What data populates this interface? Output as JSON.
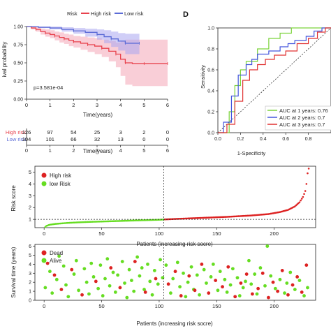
{
  "chart_data": [
    {
      "type": "line",
      "legend": {
        "title": "Risk",
        "entries": [
          "High risk",
          "Low risk"
        ],
        "colors": [
          "#e8424d",
          "#5b6bd6"
        ],
        "placement": "top"
      },
      "ylabel": "Survival probability",
      "ylabel_shown": "ival probability",
      "xlabel": "Time(years)",
      "xlim": [
        0,
        6
      ],
      "ylim": [
        0,
        1
      ],
      "x_ticks": [
        0,
        1,
        2,
        3,
        4,
        5,
        6
      ],
      "y_ticks": [
        "0.00",
        "0.25",
        "0.50",
        "0.75",
        "1.00"
      ],
      "annotation": "p=3.581e-04",
      "series": [
        {
          "name": "High risk",
          "color": "#e8424d",
          "ci_color": "#f4a6b6",
          "x": [
            0,
            0.2,
            0.4,
            0.6,
            0.8,
            1.0,
            1.2,
            1.4,
            1.6,
            1.8,
            2.0,
            2.3,
            2.6,
            2.9,
            3.2,
            3.5,
            3.8,
            4.0,
            4.2,
            4.5,
            5.0,
            5.5,
            6.0
          ],
          "y": [
            1.0,
            0.98,
            0.96,
            0.93,
            0.91,
            0.89,
            0.87,
            0.85,
            0.83,
            0.81,
            0.79,
            0.77,
            0.75,
            0.73,
            0.7,
            0.66,
            0.62,
            0.55,
            0.5,
            0.49,
            0.49,
            0.49,
            0.49
          ],
          "lower": [
            1.0,
            0.96,
            0.93,
            0.89,
            0.86,
            0.84,
            0.81,
            0.78,
            0.76,
            0.73,
            0.71,
            0.68,
            0.65,
            0.62,
            0.58,
            0.52,
            0.44,
            0.32,
            0.2,
            0.18,
            0.18,
            0.18,
            0.18
          ],
          "upper": [
            1.0,
            1.0,
            0.99,
            0.97,
            0.96,
            0.95,
            0.93,
            0.92,
            0.9,
            0.89,
            0.87,
            0.86,
            0.85,
            0.84,
            0.82,
            0.8,
            0.78,
            0.8,
            0.82,
            0.82,
            0.82,
            0.82,
            0.82
          ]
        },
        {
          "name": "Low risk",
          "color": "#5b6bd6",
          "ci_color": "#a9a6f0",
          "x": [
            0,
            0.5,
            1.0,
            1.5,
            2.0,
            2.5,
            3.0,
            3.3,
            3.6,
            3.9,
            4.2,
            4.5,
            4.8
          ],
          "y": [
            1.0,
            0.99,
            0.98,
            0.96,
            0.94,
            0.92,
            0.89,
            0.86,
            0.83,
            0.8,
            0.77,
            0.77,
            0.77
          ],
          "lower": [
            1.0,
            0.98,
            0.96,
            0.93,
            0.9,
            0.86,
            0.82,
            0.77,
            0.72,
            0.67,
            0.62,
            0.62,
            0.62
          ],
          "upper": [
            1.0,
            1.0,
            1.0,
            0.99,
            0.98,
            0.97,
            0.96,
            0.95,
            0.93,
            0.91,
            0.9,
            0.9,
            0.9
          ]
        }
      ]
    },
    {
      "type": "table",
      "columns": [
        "0",
        "1",
        "2",
        "3",
        "4",
        "5",
        "6"
      ],
      "rows": [
        {
          "label": "High risk",
          "color": "#e8424d",
          "values": [
            "126",
            "97",
            "54",
            "25",
            "3",
            "2",
            "0"
          ]
        },
        {
          "label": "Low risk",
          "color": "#5b6bd6",
          "values": [
            "104",
            "101",
            "66",
            "32",
            "13",
            "0",
            "0"
          ]
        }
      ],
      "xlabel": "Time(years)"
    },
    {
      "type": "line",
      "panel_label": "D",
      "xlabel": "1-Specificity",
      "ylabel": "Sensitivity",
      "xlim": [
        0,
        1
      ],
      "ylim": [
        0,
        1
      ],
      "ticks": [
        "0.0",
        "0.2",
        "0.4",
        "0.6",
        "0.8",
        "1.0"
      ],
      "x_ticks_shown": [
        "0.0",
        "0.2",
        "0.4",
        "0.6",
        "0.8"
      ],
      "legend_placement": "bottom-right",
      "series": [
        {
          "name": "AUC at 1 years: 0.76",
          "label_shown": "AUC at 1 years: 0.76",
          "color": "#7bd33a",
          "x": [
            0,
            0.1,
            0.1,
            0.15,
            0.15,
            0.2,
            0.2,
            0.25,
            0.25,
            0.35,
            0.35,
            0.45,
            0.45,
            0.55,
            0.55,
            0.65,
            0.65,
            0.75,
            0.8,
            1.0
          ],
          "y": [
            0,
            0,
            0.2,
            0.2,
            0.45,
            0.45,
            0.6,
            0.6,
            0.68,
            0.68,
            0.8,
            0.8,
            0.9,
            0.9,
            0.95,
            0.95,
            1.0,
            1.0,
            1.0,
            1.0
          ]
        },
        {
          "name": "AUC at 2 years: 0.74",
          "label_shown": "AUC at 2 years: 0.7",
          "color": "#4455dd",
          "x": [
            0,
            0.05,
            0.05,
            0.12,
            0.12,
            0.18,
            0.18,
            0.25,
            0.25,
            0.3,
            0.3,
            0.35,
            0.35,
            0.45,
            0.45,
            0.55,
            0.55,
            0.62,
            0.62,
            0.68,
            0.68,
            0.78,
            0.78,
            0.85,
            0.85,
            0.92,
            0.92,
            1.0
          ],
          "y": [
            0,
            0,
            0.1,
            0.1,
            0.35,
            0.35,
            0.55,
            0.55,
            0.65,
            0.65,
            0.7,
            0.7,
            0.75,
            0.75,
            0.78,
            0.78,
            0.82,
            0.82,
            0.85,
            0.85,
            0.88,
            0.88,
            0.92,
            0.92,
            0.97,
            0.97,
            1.0,
            1.0
          ]
        },
        {
          "name": "AUC at 3 years: 0.71",
          "label_shown": "AUC at 3 years: 0.7",
          "color": "#e03030",
          "x": [
            0,
            0.08,
            0.08,
            0.15,
            0.15,
            0.22,
            0.22,
            0.28,
            0.28,
            0.35,
            0.35,
            0.42,
            0.42,
            0.5,
            0.5,
            0.6,
            0.6,
            0.7,
            0.7,
            0.8,
            0.8,
            0.88,
            0.88,
            0.95,
            0.95,
            1.0
          ],
          "y": [
            0,
            0,
            0.08,
            0.08,
            0.3,
            0.3,
            0.5,
            0.5,
            0.6,
            0.6,
            0.65,
            0.65,
            0.7,
            0.7,
            0.74,
            0.74,
            0.78,
            0.78,
            0.85,
            0.85,
            0.9,
            0.9,
            0.96,
            0.96,
            1.0,
            1.0
          ]
        }
      ],
      "diagonal": true
    },
    {
      "type": "scatter",
      "xlabel": "Patients (increasing risk socre)",
      "ylabel": "Risk score",
      "xlim": [
        0,
        230
      ],
      "ylim": [
        0.3,
        5.5
      ],
      "x_ticks": [
        0,
        50,
        100,
        150,
        200
      ],
      "y_ticks": [
        1,
        2,
        3,
        4,
        5
      ],
      "cutoff_x": 104,
      "cutoff_y": 1,
      "n_low": 104,
      "n_high": 126,
      "legend": [
        {
          "label": "High risk",
          "color": "#dd2222"
        },
        {
          "label": "low Risk",
          "color": "#66dd22"
        }
      ],
      "legend_placement": "top-left",
      "low_curve": {
        "x": [
          1,
          2,
          5,
          10,
          20,
          30,
          40,
          50,
          60,
          70,
          80,
          90,
          100,
          104
        ],
        "y": [
          0.35,
          0.45,
          0.55,
          0.62,
          0.7,
          0.75,
          0.79,
          0.82,
          0.85,
          0.88,
          0.91,
          0.94,
          0.97,
          0.99
        ]
      },
      "high_curve": {
        "x": [
          105,
          120,
          140,
          160,
          180,
          195,
          205,
          212,
          218,
          222,
          225,
          227,
          228,
          229,
          230
        ],
        "y": [
          1.0,
          1.06,
          1.14,
          1.22,
          1.33,
          1.45,
          1.62,
          1.8,
          2.1,
          2.45,
          2.9,
          3.4,
          4.0,
          4.9,
          5.3
        ]
      }
    },
    {
      "type": "scatter",
      "xlabel": "Patients (increasing risk socre)",
      "ylabel": "Survival time (years)",
      "xlim": [
        0,
        230
      ],
      "ylim": [
        0,
        6.2
      ],
      "x_ticks": [
        0,
        50,
        100,
        150,
        200
      ],
      "y_ticks": [
        0,
        1,
        2,
        3,
        4,
        5,
        6
      ],
      "cutoff_x": 104,
      "legend": [
        {
          "label": "Dead",
          "color": "#dd2222"
        },
        {
          "label": "Alive",
          "color": "#66dd22"
        }
      ],
      "legend_placement": "top-left",
      "dead": [
        [
          3,
          4.1
        ],
        [
          9,
          2.8
        ],
        [
          15,
          1.2
        ],
        [
          24,
          3.4
        ],
        [
          33,
          0.6
        ],
        [
          45,
          2.1
        ],
        [
          58,
          3.6
        ],
        [
          66,
          1.4
        ],
        [
          79,
          4.3
        ],
        [
          88,
          0.9
        ],
        [
          97,
          2.4
        ],
        [
          108,
          1.8
        ],
        [
          114,
          3.2
        ],
        [
          119,
          0.5
        ],
        [
          126,
          2.7
        ],
        [
          131,
          1.1
        ],
        [
          137,
          4.0
        ],
        [
          143,
          0.8
        ],
        [
          149,
          2.2
        ],
        [
          155,
          1.5
        ],
        [
          160,
          3.7
        ],
        [
          166,
          0.4
        ],
        [
          171,
          1.9
        ],
        [
          176,
          2.9
        ],
        [
          181,
          0.7
        ],
        [
          186,
          1.3
        ],
        [
          190,
          3.0
        ],
        [
          195,
          0.3
        ],
        [
          199,
          2.0
        ],
        [
          203,
          1.0
        ],
        [
          207,
          3.3
        ],
        [
          212,
          0.6
        ],
        [
          216,
          1.7
        ],
        [
          220,
          2.6
        ],
        [
          224,
          0.9
        ],
        [
          228,
          3.9
        ]
      ],
      "alive": [
        [
          1,
          1.4
        ],
        [
          5,
          3.2
        ],
        [
          7,
          0.8
        ],
        [
          11,
          2.3
        ],
        [
          13,
          4.9
        ],
        [
          17,
          3.8
        ],
        [
          19,
          1.7
        ],
        [
          21,
          0.4
        ],
        [
          26,
          2.9
        ],
        [
          28,
          4.4
        ],
        [
          30,
          1.1
        ],
        [
          35,
          3.5
        ],
        [
          37,
          2.0
        ],
        [
          39,
          0.7
        ],
        [
          41,
          4.1
        ],
        [
          43,
          2.6
        ],
        [
          47,
          1.3
        ],
        [
          49,
          3.9
        ],
        [
          51,
          0.5
        ],
        [
          53,
          2.4
        ],
        [
          55,
          4.6
        ],
        [
          57,
          1.6
        ],
        [
          60,
          3.1
        ],
        [
          62,
          0.9
        ],
        [
          64,
          2.8
        ],
        [
          68,
          4.3
        ],
        [
          70,
          1.9
        ],
        [
          72,
          0.3
        ],
        [
          74,
          3.4
        ],
        [
          76,
          2.2
        ],
        [
          78,
          1.0
        ],
        [
          81,
          4.8
        ],
        [
          83,
          2.7
        ],
        [
          85,
          3.6
        ],
        [
          87,
          1.2
        ],
        [
          90,
          4.0
        ],
        [
          92,
          2.1
        ],
        [
          94,
          0.6
        ],
        [
          96,
          3.3
        ],
        [
          99,
          1.8
        ],
        [
          101,
          4.5
        ],
        [
          103,
          2.5
        ],
        [
          106,
          3.9
        ],
        [
          110,
          0.8
        ],
        [
          112,
          2.4
        ],
        [
          116,
          4.2
        ],
        [
          118,
          1.5
        ],
        [
          121,
          3.0
        ],
        [
          123,
          0.4
        ],
        [
          125,
          2.0
        ],
        [
          128,
          3.7
        ],
        [
          130,
          1.2
        ],
        [
          133,
          2.8
        ],
        [
          135,
          0.6
        ],
        [
          139,
          3.4
        ],
        [
          141,
          1.9
        ],
        [
          145,
          2.6
        ],
        [
          147,
          4.0
        ],
        [
          151,
          1.1
        ],
        [
          153,
          3.2
        ],
        [
          157,
          2.3
        ],
        [
          159,
          0.9
        ],
        [
          162,
          1.7
        ],
        [
          164,
          3.5
        ],
        [
          168,
          2.5
        ],
        [
          170,
          0.5
        ],
        [
          173,
          1.4
        ],
        [
          175,
          2.1
        ],
        [
          178,
          4.4
        ],
        [
          180,
          1.8
        ],
        [
          183,
          2.9
        ],
        [
          185,
          0.7
        ],
        [
          188,
          3.6
        ],
        [
          192,
          1.6
        ],
        [
          194,
          6.0
        ],
        [
          197,
          2.7
        ],
        [
          201,
          1.3
        ],
        [
          205,
          2.3
        ],
        [
          209,
          0.8
        ],
        [
          211,
          1.9
        ],
        [
          214,
          3.1
        ],
        [
          218,
          1.2
        ],
        [
          222,
          2.2
        ],
        [
          226,
          0.5
        ],
        [
          229,
          1.4
        ]
      ]
    }
  ]
}
